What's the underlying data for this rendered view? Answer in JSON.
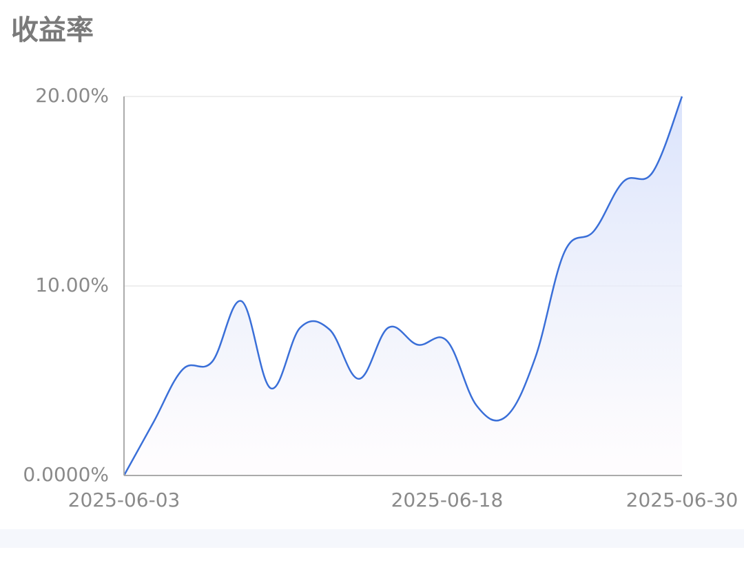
{
  "chart_data": {
    "type": "line",
    "title": "收益率",
    "categories": [
      "2025-06-03",
      null,
      null,
      null,
      null,
      null,
      null,
      null,
      null,
      null,
      null,
      "2025-06-18",
      null,
      null,
      null,
      null,
      null,
      null,
      null,
      "2025-06-30"
    ],
    "series": [
      {
        "color": "#3a6fd8",
        "values": [
          0,
          2.8,
          5.6,
          6.0,
          9.2,
          4.6,
          7.8,
          7.7,
          5.1,
          7.8,
          6.9,
          7.1,
          3.7,
          3.1,
          6.2,
          11.8,
          12.9,
          15.5,
          16.0,
          20.0
        ]
      }
    ],
    "ylim": [
      0,
      20
    ],
    "yticks": [
      {
        "value": 0,
        "label": "0.0000%"
      },
      {
        "value": 10,
        "label": "10.00%"
      },
      {
        "value": 20,
        "label": "20.00%"
      }
    ],
    "grid": true
  }
}
